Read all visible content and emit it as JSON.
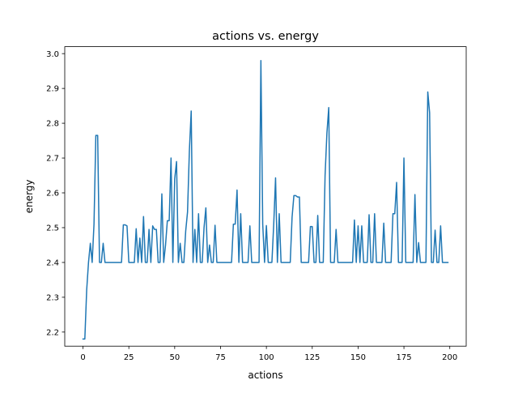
{
  "chart_data": {
    "type": "line",
    "title": "actions vs. energy",
    "xlabel": "actions",
    "ylabel": "energy",
    "xlim": [
      -9.95,
      208.95
    ],
    "ylim": [
      2.1595,
      3.02
    ],
    "xticks": [
      0,
      25,
      50,
      75,
      100,
      125,
      150,
      175,
      200
    ],
    "xtick_labels": [
      "0",
      "25",
      "50",
      "75",
      "100",
      "125",
      "150",
      "175",
      "200"
    ],
    "yticks": [
      2.2,
      2.3,
      2.4,
      2.5,
      2.6,
      2.7,
      2.8,
      2.9,
      3.0
    ],
    "ytick_labels": [
      "2.2",
      "2.3",
      "2.4",
      "2.5",
      "2.6",
      "2.7",
      "2.8",
      "2.9",
      "3.0"
    ],
    "grid": false,
    "colors": {
      "line": "#1f77b4"
    },
    "series": [
      {
        "values": [
          2.18,
          2.18,
          2.32,
          2.4,
          2.455,
          2.4,
          2.51,
          2.765,
          2.765,
          2.4,
          2.4,
          2.455,
          2.4,
          2.4,
          2.4,
          2.4,
          2.4,
          2.4,
          2.4,
          2.4,
          2.4,
          2.4,
          2.508,
          2.508,
          2.505,
          2.4,
          2.4,
          2.4,
          2.4,
          2.497,
          2.4,
          2.47,
          2.4,
          2.532,
          2.4,
          2.4,
          2.495,
          2.4,
          2.505,
          2.495,
          2.495,
          2.4,
          2.4,
          2.597,
          2.4,
          2.45,
          2.52,
          2.52,
          2.7,
          2.4,
          2.64,
          2.69,
          2.4,
          2.455,
          2.4,
          2.4,
          2.49,
          2.545,
          2.72,
          2.835,
          2.4,
          2.495,
          2.4,
          2.54,
          2.4,
          2.4,
          2.5,
          2.557,
          2.4,
          2.45,
          2.4,
          2.4,
          2.507,
          2.4,
          2.4,
          2.4,
          2.4,
          2.4,
          2.4,
          2.4,
          2.4,
          2.4,
          2.51,
          2.51,
          2.608,
          2.4,
          2.54,
          2.4,
          2.4,
          2.4,
          2.4,
          2.505,
          2.4,
          2.4,
          2.4,
          2.4,
          2.4,
          2.98,
          2.51,
          2.4,
          2.506,
          2.4,
          2.4,
          2.4,
          2.51,
          2.643,
          2.4,
          2.54,
          2.4,
          2.4,
          2.4,
          2.4,
          2.4,
          2.4,
          2.53,
          2.592,
          2.592,
          2.588,
          2.588,
          2.4,
          2.4,
          2.4,
          2.4,
          2.4,
          2.503,
          2.503,
          2.4,
          2.4,
          2.535,
          2.4,
          2.4,
          2.4,
          2.65,
          2.772,
          2.845,
          2.4,
          2.4,
          2.4,
          2.495,
          2.4,
          2.4,
          2.4,
          2.4,
          2.4,
          2.4,
          2.4,
          2.4,
          2.4,
          2.522,
          2.4,
          2.505,
          2.4,
          2.505,
          2.4,
          2.4,
          2.4,
          2.537,
          2.4,
          2.4,
          2.54,
          2.4,
          2.4,
          2.4,
          2.4,
          2.513,
          2.4,
          2.4,
          2.4,
          2.4,
          2.54,
          2.54,
          2.63,
          2.4,
          2.4,
          2.4,
          2.7,
          2.4,
          2.4,
          2.4,
          2.4,
          2.4,
          2.595,
          2.4,
          2.457,
          2.4,
          2.4,
          2.4,
          2.4,
          2.89,
          2.83,
          2.4,
          2.4,
          2.493,
          2.4,
          2.4,
          2.505,
          2.4,
          2.4,
          2.4,
          2.4
        ]
      }
    ]
  }
}
